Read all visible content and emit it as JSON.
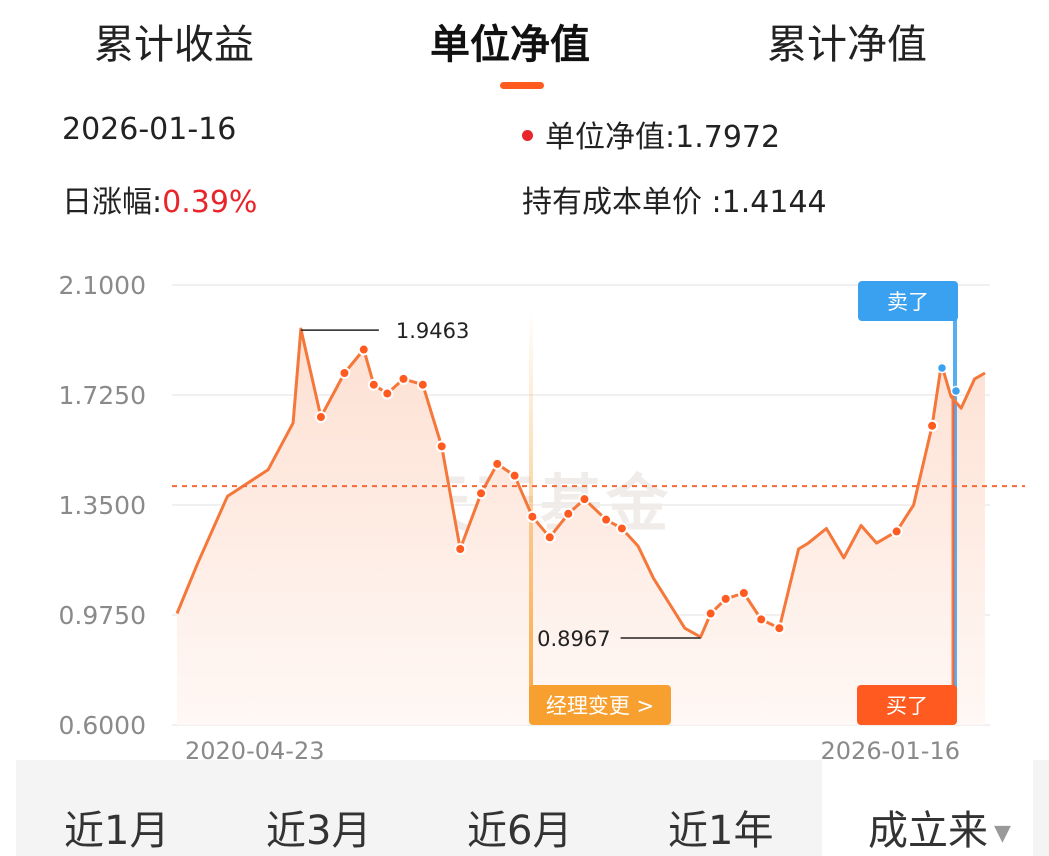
{
  "tabs": [
    {
      "label": "累计收益"
    },
    {
      "label": "单位净值"
    },
    {
      "label": "累计净值"
    }
  ],
  "info": {
    "date": "2026-01-16",
    "unit_nav_label": "单位净值:",
    "unit_nav_value": "1.7972",
    "daily_change_label": "日涨幅:",
    "daily_change_value": "0.39%",
    "cost_label": "持有成本单价 :",
    "cost_value": "1.4144"
  },
  "watermark": "天天基金",
  "chart_data": {
    "type": "line",
    "x_start": "2020-04-23",
    "x_end": "2026-01-16",
    "yticks": [
      "2.1000",
      "1.7250",
      "1.3500",
      "0.9750",
      "0.6000"
    ],
    "ylim": [
      0.6,
      2.1
    ],
    "cost_line": 1.4144,
    "max_label": "1.9463",
    "min_label": "0.8967",
    "series": [
      {
        "x": [
          "2020-04-23",
          "2020-06-15",
          "2020-09-01",
          "2020-12-15",
          "2021-02-18",
          "2021-03-10",
          "2021-05-01",
          "2021-07-01",
          "2021-08-20",
          "2021-09-15",
          "2021-10-20",
          "2021-12-01",
          "2022-01-20",
          "2022-03-10",
          "2022-04-27",
          "2022-06-20",
          "2022-08-01",
          "2022-09-15",
          "2022-10-31",
          "2022-12-15",
          "2023-02-01",
          "2023-03-15",
          "2023-05-10",
          "2023-06-20",
          "2023-08-01",
          "2023-09-10",
          "2023-10-23",
          "2023-11-30",
          "2024-01-10",
          "2024-02-05",
          "2024-03-15",
          "2024-05-01",
          "2024-06-15",
          "2024-08-01",
          "2024-09-20",
          "2024-10-15",
          "2024-12-01",
          "2025-01-15",
          "2025-03-01",
          "2025-04-10",
          "2025-06-01",
          "2025-07-15",
          "2025-09-01",
          "2025-09-25",
          "2025-10-20",
          "2025-11-15",
          "2025-12-20",
          "2026-01-16"
        ],
        "values": [
          0.98,
          1.15,
          1.38,
          1.47,
          1.63,
          1.95,
          1.65,
          1.8,
          1.88,
          1.76,
          1.73,
          1.78,
          1.76,
          1.55,
          1.2,
          1.39,
          1.49,
          1.45,
          1.31,
          1.24,
          1.32,
          1.37,
          1.3,
          1.27,
          1.21,
          1.1,
          1.01,
          0.93,
          0.9,
          0.98,
          1.03,
          1.05,
          0.96,
          0.93,
          1.2,
          1.22,
          1.27,
          1.17,
          1.28,
          1.22,
          1.26,
          1.35,
          1.62,
          1.83,
          1.72,
          1.68,
          1.78,
          1.8
        ]
      }
    ],
    "markers": {
      "buy": "买了",
      "sell": "卖了",
      "manager_change": "经理变更 >"
    }
  },
  "ranges": [
    {
      "label": "近1月"
    },
    {
      "label": "近3月"
    },
    {
      "label": "近6月"
    },
    {
      "label": "近1年"
    },
    {
      "label": "成立来"
    }
  ],
  "colors": {
    "accent": "#ff5a1f",
    "line": "#f5773a",
    "buy": "#ff5a1f",
    "sell": "#3aa0f0",
    "manager": "#f7a030",
    "up": "#e8252a"
  }
}
